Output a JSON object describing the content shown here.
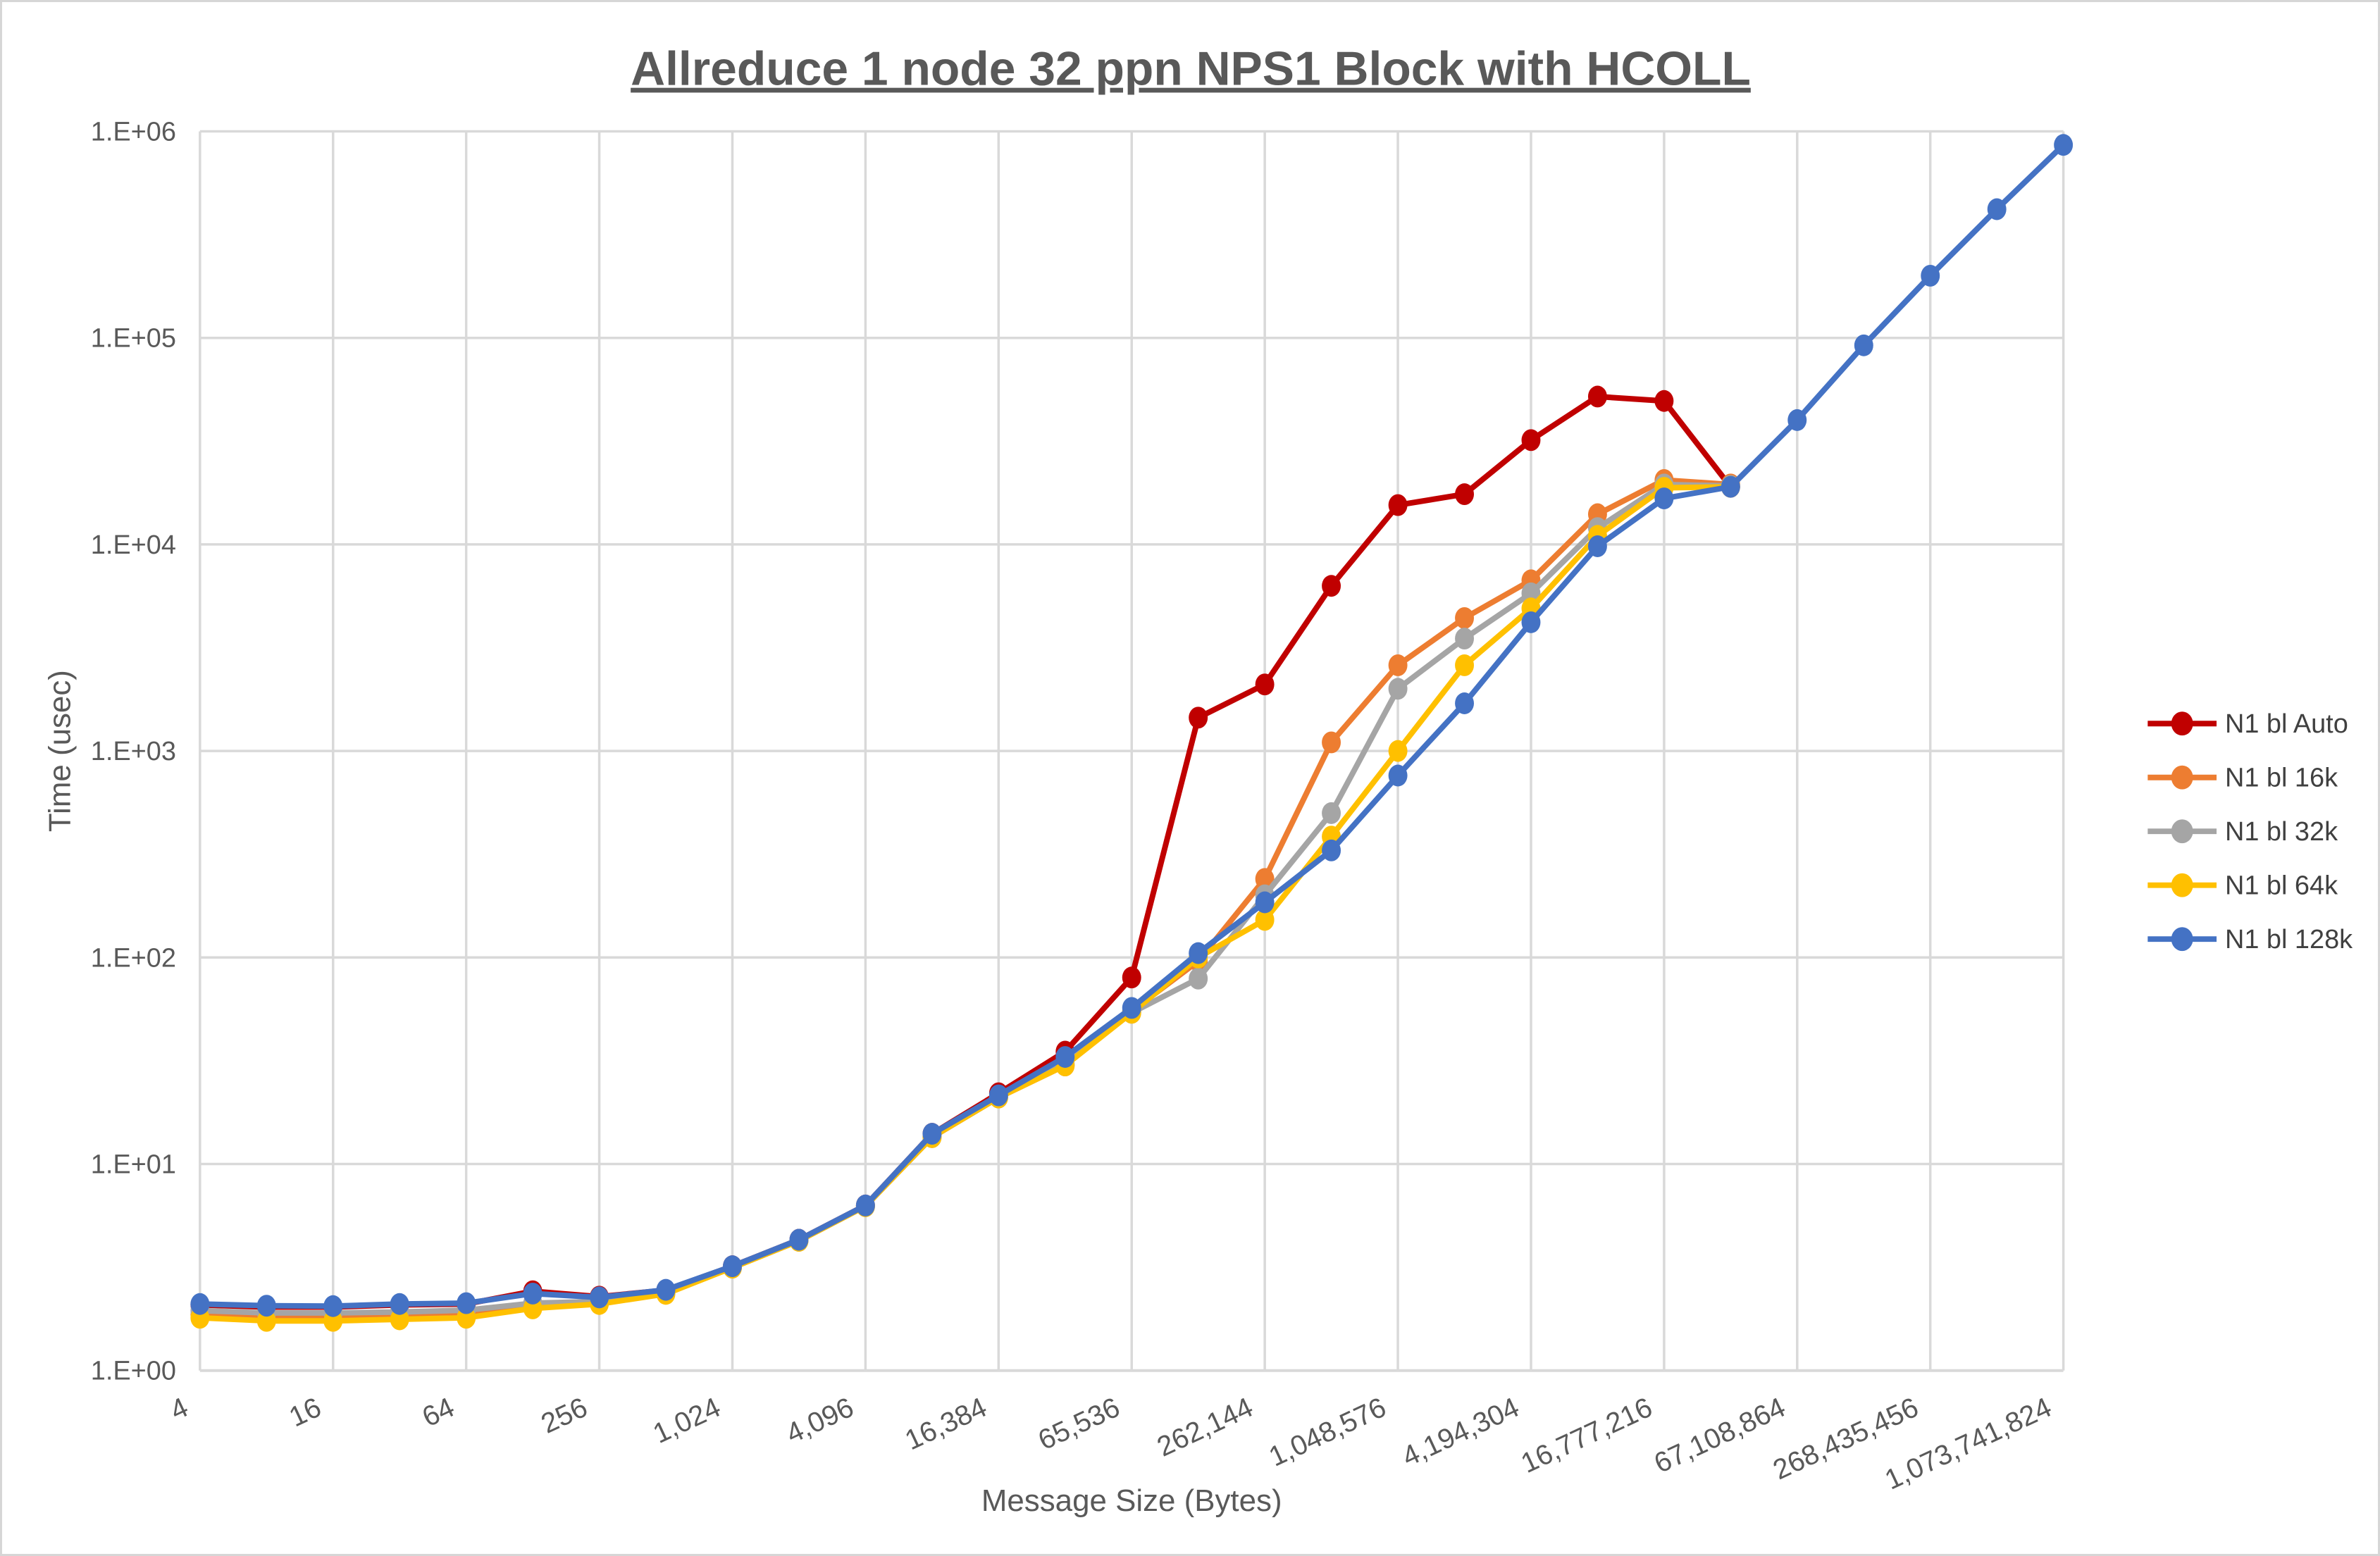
{
  "chart_data": {
    "type": "line",
    "title": "Allreduce 1 node 32 ppn NPS1 Block with HCOLL",
    "xlabel": "Message Size (Bytes)",
    "ylabel": "Time (usec)",
    "x_scale": "log2",
    "y_scale": "log10",
    "xlim": [
      4,
      1073741824
    ],
    "ylim": [
      1,
      1000000
    ],
    "grid": true,
    "legend_position": "right",
    "grid_color": "#D9D9D9",
    "text_color": "#595959",
    "y_tick_labels": [
      "1.E+00",
      "1.E+01",
      "1.E+02",
      "1.E+03",
      "1.E+04",
      "1.E+05",
      "1.E+06"
    ],
    "x_tick_values": [
      4,
      16,
      64,
      256,
      1024,
      4096,
      16384,
      65536,
      262144,
      1048576,
      4194304,
      16777216,
      67108864,
      268435456,
      1073741824
    ],
    "x_tick_labels": [
      "4",
      "16",
      "64",
      "256",
      "1,024",
      "4,096",
      "16,384",
      "65,536",
      "262,144",
      "1,048,576",
      "4,194,304",
      "16,777,216",
      "67,108,864",
      "268,435,456",
      "1,073,741,824"
    ],
    "series": [
      {
        "name": "N1 bl Auto",
        "color": "#C00000",
        "points": [
          [
            4,
            2.08
          ],
          [
            8,
            2.03
          ],
          [
            16,
            2.03
          ],
          [
            32,
            2.08
          ],
          [
            64,
            2.1
          ],
          [
            128,
            2.42
          ],
          [
            256,
            2.28
          ],
          [
            512,
            2.45
          ],
          [
            1024,
            3.2
          ],
          [
            2048,
            4.3
          ],
          [
            4096,
            6.3
          ],
          [
            8192,
            14
          ],
          [
            16384,
            22
          ],
          [
            32768,
            35
          ],
          [
            65536,
            80
          ],
          [
            131072,
            1450
          ],
          [
            262144,
            2100
          ],
          [
            524288,
            6300
          ],
          [
            1048576,
            15500
          ],
          [
            2097152,
            17500
          ],
          [
            4194304,
            32000
          ],
          [
            8388608,
            52000
          ],
          [
            16777216,
            49500
          ],
          [
            33554432,
            19000
          ]
        ]
      },
      {
        "name": "N1 bl 16k",
        "color": "#ED7D31",
        "points": [
          [
            4,
            1.86
          ],
          [
            8,
            1.8
          ],
          [
            16,
            1.8
          ],
          [
            32,
            1.82
          ],
          [
            64,
            1.86
          ],
          [
            128,
            2.05
          ],
          [
            256,
            2.12
          ],
          [
            512,
            2.38
          ],
          [
            1024,
            3.15
          ],
          [
            2048,
            4.25
          ],
          [
            4096,
            6.25
          ],
          [
            8192,
            13.5
          ],
          [
            16384,
            21
          ],
          [
            32768,
            30
          ],
          [
            65536,
            55
          ],
          [
            131072,
            96
          ],
          [
            262144,
            240
          ],
          [
            524288,
            1100
          ],
          [
            1048576,
            2600
          ],
          [
            2097152,
            4400
          ],
          [
            4194304,
            6700
          ],
          [
            8388608,
            14000
          ],
          [
            16777216,
            20500
          ],
          [
            33554432,
            19500
          ]
        ]
      },
      {
        "name": "N1 bl 32k",
        "color": "#A5A5A5",
        "points": [
          [
            4,
            1.95
          ],
          [
            8,
            1.9
          ],
          [
            16,
            1.9
          ],
          [
            32,
            1.92
          ],
          [
            64,
            1.96
          ],
          [
            128,
            2.12
          ],
          [
            256,
            2.16
          ],
          [
            512,
            2.4
          ],
          [
            1024,
            3.15
          ],
          [
            2048,
            4.25
          ],
          [
            4096,
            6.25
          ],
          [
            8192,
            13.5
          ],
          [
            16384,
            21
          ],
          [
            32768,
            30.5
          ],
          [
            65536,
            54
          ],
          [
            131072,
            79
          ],
          [
            262144,
            200
          ],
          [
            524288,
            500
          ],
          [
            1048576,
            2000
          ],
          [
            2097152,
            3500
          ],
          [
            4194304,
            5800
          ],
          [
            8388608,
            12000
          ],
          [
            16777216,
            19500
          ],
          [
            33554432,
            19200
          ]
        ]
      },
      {
        "name": "N1 bl 64k",
        "color": "#FFC000",
        "points": [
          [
            4,
            1.8
          ],
          [
            8,
            1.74
          ],
          [
            16,
            1.74
          ],
          [
            32,
            1.77
          ],
          [
            64,
            1.8
          ],
          [
            128,
            2.0
          ],
          [
            256,
            2.1
          ],
          [
            512,
            2.35
          ],
          [
            1024,
            3.15
          ],
          [
            2048,
            4.25
          ],
          [
            4096,
            6.25
          ],
          [
            8192,
            13.5
          ],
          [
            16384,
            21
          ],
          [
            32768,
            30
          ],
          [
            65536,
            54
          ],
          [
            131072,
            100
          ],
          [
            262144,
            152
          ],
          [
            524288,
            385
          ],
          [
            1048576,
            1000
          ],
          [
            2097152,
            2600
          ],
          [
            4194304,
            4900
          ],
          [
            8388608,
            11000
          ],
          [
            16777216,
            18800
          ],
          [
            33554432,
            19000
          ]
        ]
      },
      {
        "name": "N1 bl 128k",
        "color": "#4472C4",
        "points": [
          [
            4,
            2.1
          ],
          [
            8,
            2.06
          ],
          [
            16,
            2.05
          ],
          [
            32,
            2.1
          ],
          [
            64,
            2.12
          ],
          [
            128,
            2.36
          ],
          [
            256,
            2.26
          ],
          [
            512,
            2.46
          ],
          [
            1024,
            3.2
          ],
          [
            2048,
            4.3
          ],
          [
            4096,
            6.3
          ],
          [
            8192,
            14
          ],
          [
            16384,
            21.5
          ],
          [
            32768,
            33
          ],
          [
            65536,
            57
          ],
          [
            131072,
            105
          ],
          [
            262144,
            185
          ],
          [
            524288,
            330
          ],
          [
            1048576,
            760
          ],
          [
            2097152,
            1700
          ],
          [
            4194304,
            4200
          ],
          [
            8388608,
            9800
          ],
          [
            16777216,
            16700
          ],
          [
            33554432,
            19000
          ],
          [
            67108864,
            40000
          ],
          [
            134217728,
            92000
          ],
          [
            268435456,
            200000
          ],
          [
            536870912,
            420000
          ],
          [
            1073741824,
            860000
          ]
        ]
      }
    ]
  }
}
